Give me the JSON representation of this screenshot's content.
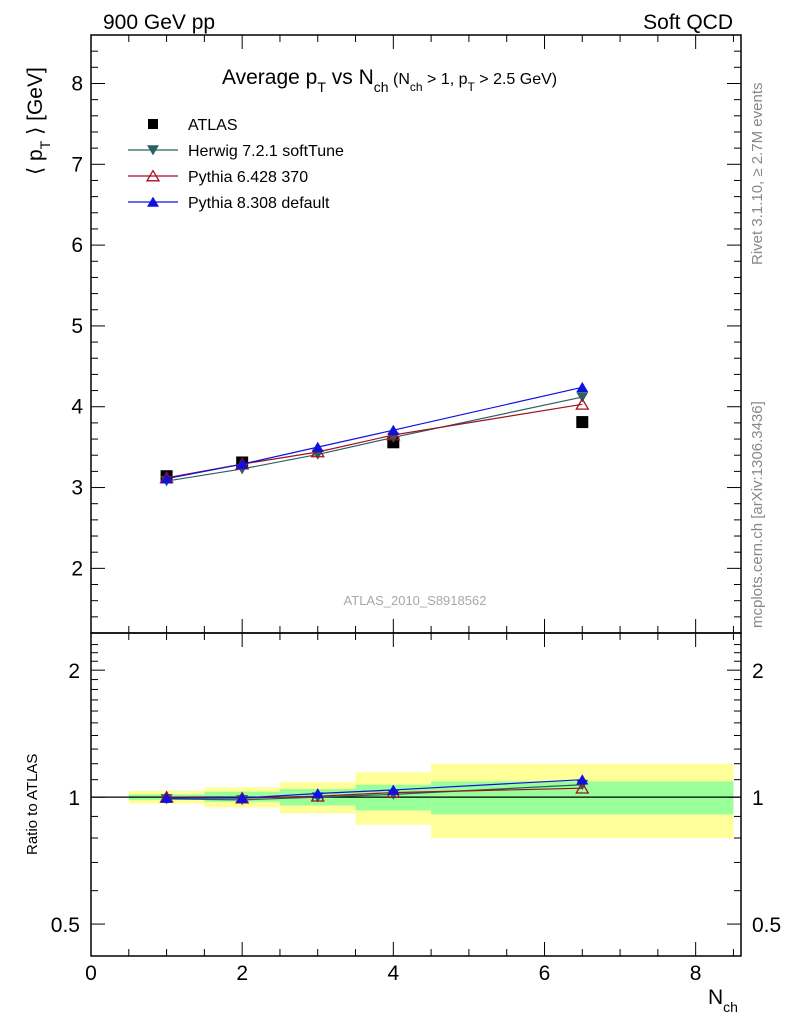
{
  "header": {
    "left": "900 GeV pp",
    "right": "Soft QCD"
  },
  "title": {
    "main": "Average p",
    "main_sub": "T",
    "vs": " vs N",
    "vs_sub": "ch",
    "cut_open": " (N",
    "cut_sub1": "ch",
    "cut_mid": " > 1, p",
    "cut_sub2": "T",
    "cut_close": " > 2.5 GeV)"
  },
  "side_labels": {
    "rivet": "Rivet 3.1.10, ≥ 2.7M events",
    "mcplots": "mcplots.cern.ch [arXiv:1306.3436]"
  },
  "watermark": "ATLAS_2010_S8918562",
  "colors": {
    "atlas": "#000000",
    "herwig": "#2b6060",
    "pythia6": "#a01020",
    "pythia8": "#1010e0",
    "band_inner": "#99ff99",
    "band_outer": "#ffff99"
  },
  "chart_data": [
    {
      "type": "line",
      "panel": "main",
      "title": "Average pT vs Nch (Nch > 1, pT > 2.5 GeV)",
      "ylabel": "⟨ p_T ⟩ [GeV]",
      "ylabel_parts": {
        "open": "⟨ p",
        "sub": "T",
        "close": " ⟩  [GeV]"
      },
      "xlabel": "N_ch",
      "xlim": [
        0,
        8.6
      ],
      "ylim": [
        1.2,
        8.6
      ],
      "yticks": [
        2,
        3,
        4,
        5,
        6,
        7,
        8
      ],
      "xticks": [
        0,
        2,
        4,
        6,
        8
      ],
      "series": [
        {
          "name": "ATLAS",
          "marker": "square",
          "x": [
            1,
            2,
            4,
            6.5
          ],
          "y": [
            3.14,
            3.31,
            3.56,
            3.81
          ]
        },
        {
          "name": "Herwig 7.2.1 softTune",
          "marker": "triangle-down",
          "x": [
            1,
            2,
            3,
            4,
            6.5
          ],
          "y": [
            3.08,
            3.23,
            3.41,
            3.62,
            4.12
          ]
        },
        {
          "name": "Pythia 6.428 370",
          "marker": "triangle-up-open",
          "x": [
            1,
            2,
            3,
            4,
            6.5
          ],
          "y": [
            3.12,
            3.29,
            3.44,
            3.65,
            4.03
          ]
        },
        {
          "name": "Pythia 8.308 default",
          "marker": "triangle-up",
          "x": [
            1,
            2,
            3,
            4,
            6.5
          ],
          "y": [
            3.11,
            3.29,
            3.5,
            3.71,
            4.24
          ]
        }
      ]
    },
    {
      "type": "line",
      "panel": "ratio",
      "ylabel": "Ratio to ATLAS",
      "xlabel": "N_ch",
      "xlim": [
        0,
        8.6
      ],
      "ylim": [
        0.42,
        2.45
      ],
      "yticks": [
        0.5,
        1,
        2
      ],
      "ytick_labels": [
        "0.5",
        "1",
        "2"
      ],
      "xticks": [
        0,
        2,
        4,
        6,
        8
      ],
      "xtick_labels": [
        "0",
        "2",
        "4",
        "6",
        "8"
      ],
      "bands": [
        {
          "x0": 0.5,
          "x1": 1.5,
          "inner": [
            0.985,
            1.015
          ],
          "outer": [
            0.965,
            1.035
          ]
        },
        {
          "x0": 1.5,
          "x1": 2.5,
          "inner": [
            0.975,
            1.03
          ],
          "outer": [
            0.945,
            1.055
          ]
        },
        {
          "x0": 2.5,
          "x1": 3.5,
          "inner": [
            0.955,
            1.045
          ],
          "outer": [
            0.915,
            1.085
          ]
        },
        {
          "x0": 3.5,
          "x1": 4.5,
          "inner": [
            0.93,
            1.07
          ],
          "outer": [
            0.86,
            1.145
          ]
        },
        {
          "x0": 4.5,
          "x1": 8.5,
          "inner": [
            0.91,
            1.09
          ],
          "outer": [
            0.8,
            1.2
          ]
        }
      ],
      "series": [
        {
          "name": "Herwig 7.2.1 softTune",
          "x": [
            1,
            2,
            3,
            4,
            6.5
          ],
          "y": [
            0.99,
            0.985,
            1.0,
            1.015,
            1.07
          ]
        },
        {
          "name": "Pythia 6.428 370",
          "x": [
            1,
            2,
            3,
            4,
            6.5
          ],
          "y": [
            1.0,
            0.995,
            1.005,
            1.025,
            1.05
          ]
        },
        {
          "name": "Pythia 8.308 default",
          "x": [
            1,
            2,
            3,
            4,
            6.5
          ],
          "y": [
            0.995,
            0.995,
            1.02,
            1.04,
            1.1
          ]
        }
      ]
    }
  ]
}
